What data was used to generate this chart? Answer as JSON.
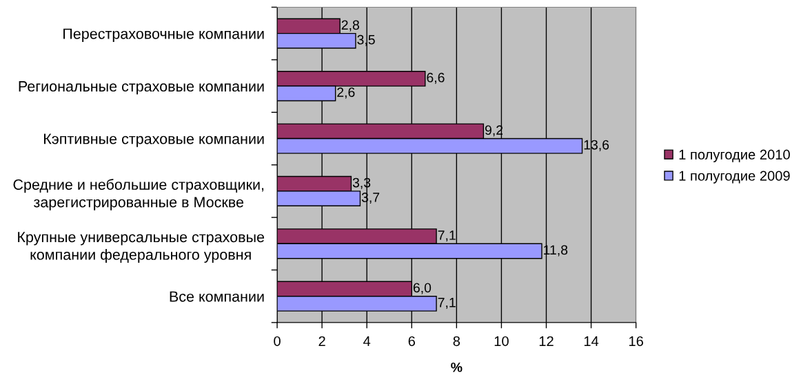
{
  "chart_data": {
    "type": "bar",
    "orientation": "horizontal",
    "categories": [
      "Перестраховочные компании",
      "Региональные страховые компании",
      "Кэптивные страховые компании",
      "Средние и небольшие страховщики,\nзарегистрированные в Москве",
      "Крупные универсальные страховые\nкомпании федерального уровня",
      "Все компании"
    ],
    "series": [
      {
        "name": "1 полугодие 2010",
        "color": "#993366",
        "values": [
          2.8,
          6.6,
          9.2,
          3.3,
          7.1,
          6.0
        ],
        "value_labels": [
          "2,8",
          "6,6",
          "9,2",
          "3,3",
          "7,1",
          "6,0"
        ]
      },
      {
        "name": "1 полугодие 2009",
        "color": "#9999ff",
        "values": [
          3.5,
          2.6,
          13.6,
          3.7,
          11.8,
          7.1
        ],
        "value_labels": [
          "3,5",
          "2,6",
          "13,6",
          "3,7",
          "11,8",
          "7,1"
        ]
      }
    ],
    "xlabel": "%",
    "xlim": [
      0,
      16
    ],
    "xticks": [
      0,
      2,
      4,
      6,
      8,
      10,
      12,
      14,
      16
    ],
    "grid": "x",
    "legend": "right"
  }
}
